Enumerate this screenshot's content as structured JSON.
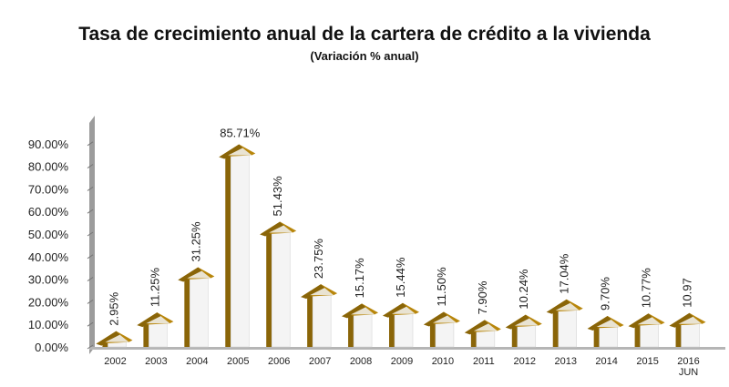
{
  "chart_data": {
    "type": "bar",
    "title": "Tasa de crecimiento anual de la cartera de crédito a la vivienda",
    "subtitle": "(Variación % anual)",
    "categories": [
      "2002",
      "2003",
      "2004",
      "2005",
      "2006",
      "2007",
      "2008",
      "2009",
      "2010",
      "2011",
      "2012",
      "2013",
      "2014",
      "2015",
      "2016\nJUN"
    ],
    "values": [
      2.95,
      11.25,
      31.25,
      85.71,
      51.43,
      23.75,
      15.17,
      15.44,
      11.5,
      7.9,
      10.24,
      17.04,
      9.7,
      10.77,
      10.97
    ],
    "data_labels": [
      "2.95%",
      "11.25%",
      "31.25%",
      "85.71%",
      "51.43%",
      "23.75%",
      "15.17%",
      "15.44%",
      "11.50%",
      "7.90%",
      "10.24%",
      "17.04%",
      "9.70%",
      "10.77%",
      "10.97"
    ],
    "yticks": [
      "0.00%",
      "10.00%",
      "20.00%",
      "30.00%",
      "40.00%",
      "50.00%",
      "60.00%",
      "70.00%",
      "80.00%",
      "90.00%"
    ],
    "ylim": [
      0,
      100
    ],
    "xlabel": "",
    "ylabel": "",
    "grid": false,
    "colors": {
      "arrow_side": "#8a6508",
      "arrow_top": "#b8860b",
      "arrow_face": "#f4f4f4",
      "floor": "#c9c9c9",
      "wall": "#9c9c9c"
    }
  }
}
